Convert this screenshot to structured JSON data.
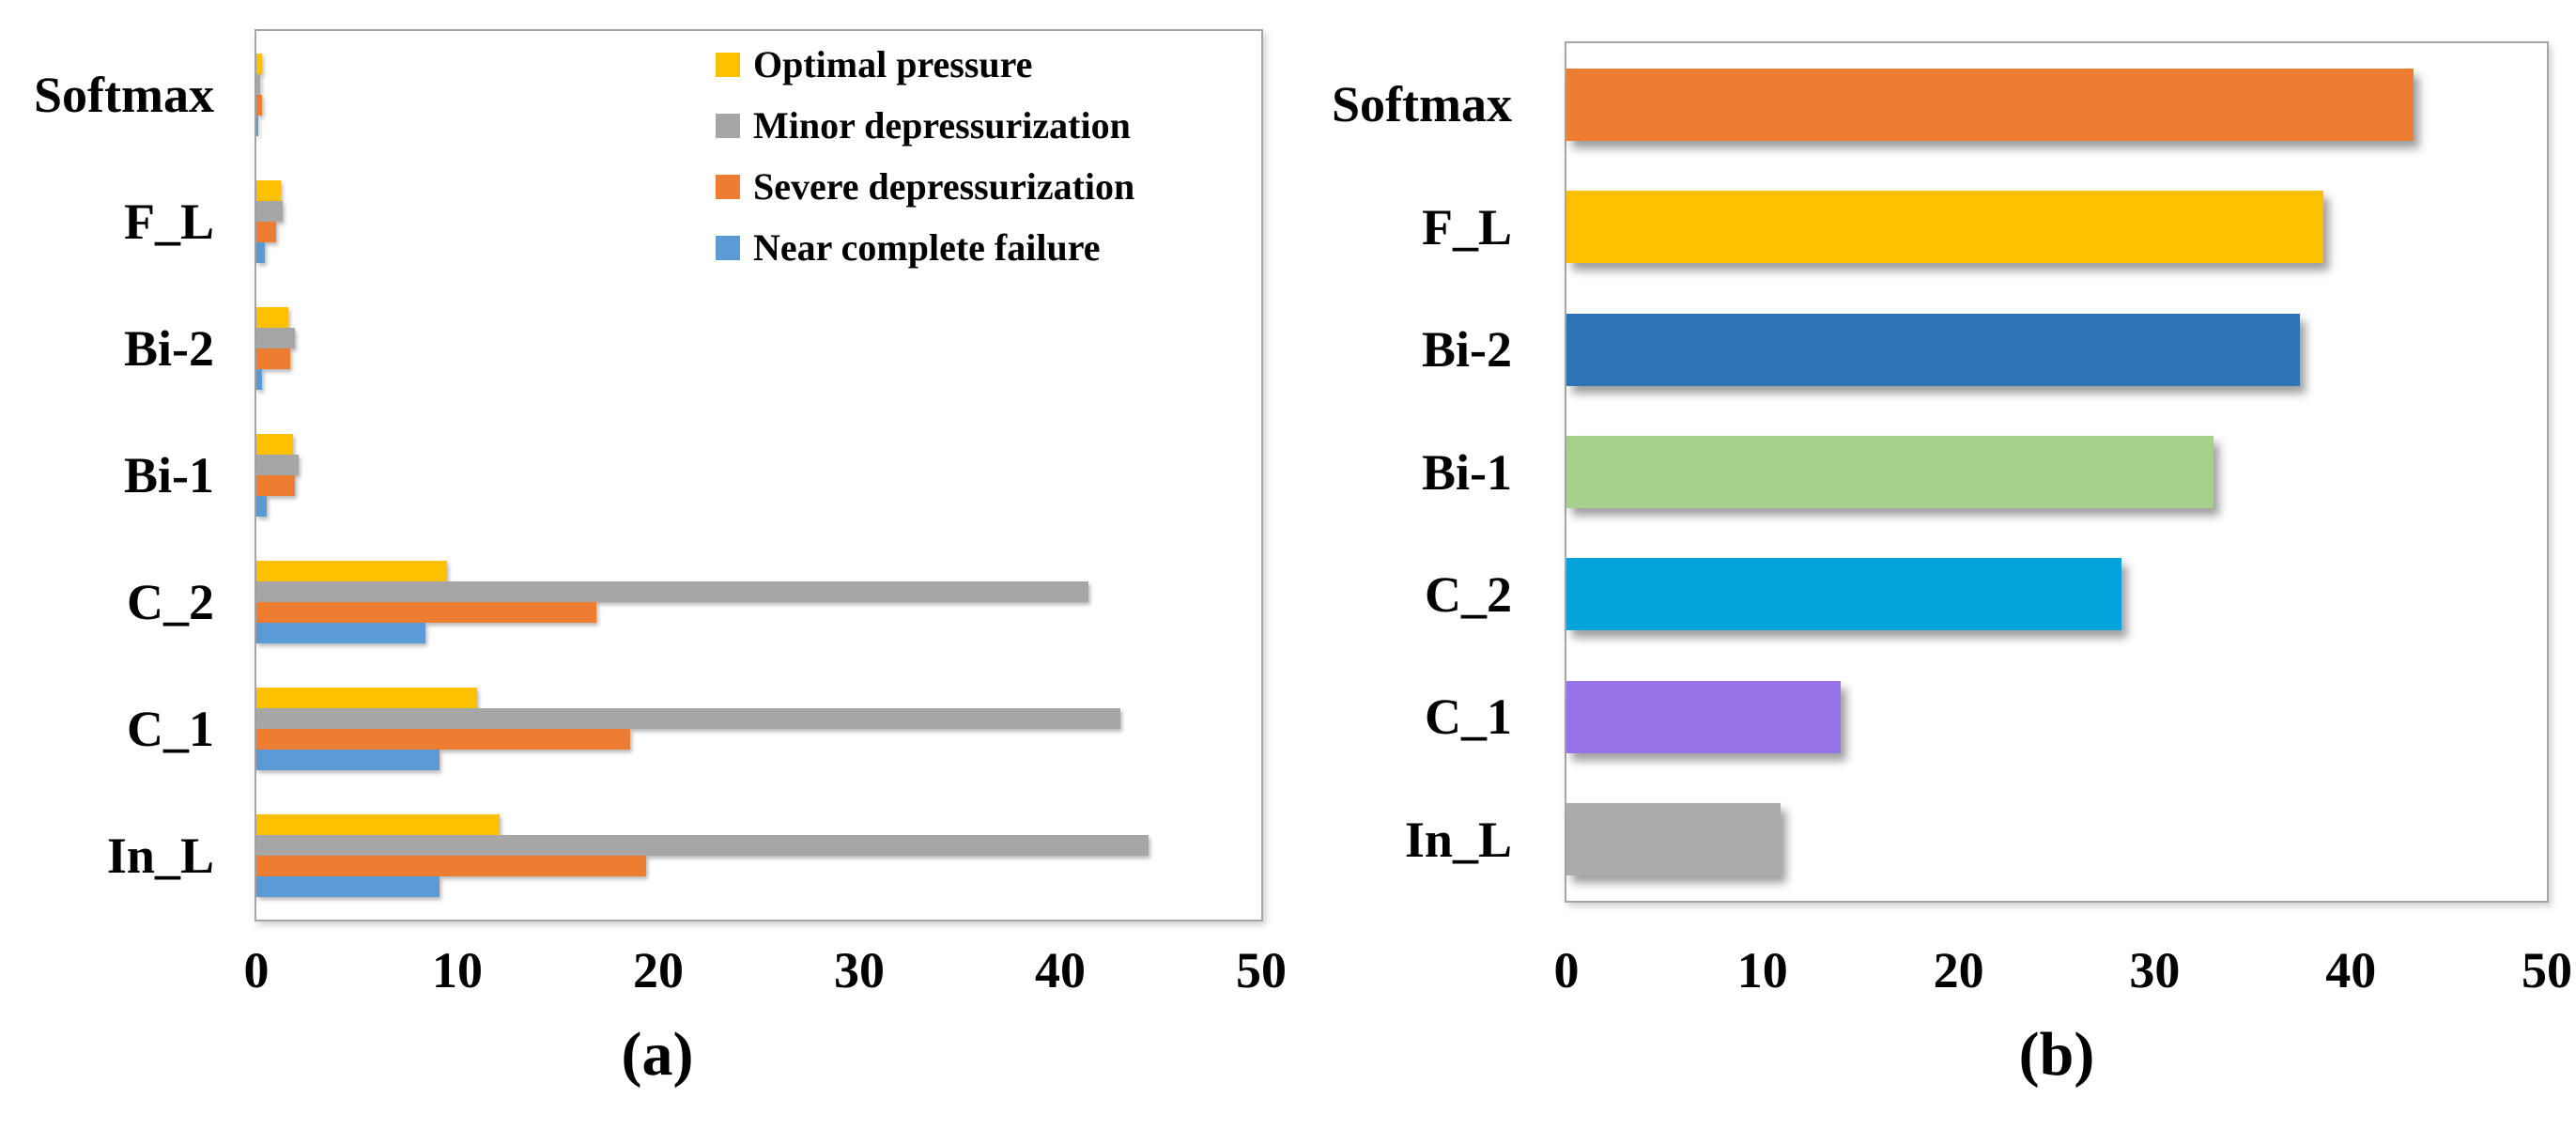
{
  "page": {
    "background": "#ffffff"
  },
  "chart_data": [
    {
      "id": "a",
      "caption": "(a)",
      "type": "bar",
      "orientation": "horizontal",
      "title": "",
      "xlabel": "",
      "ylabel": "",
      "xlim": [
        0,
        50
      ],
      "xticks": [
        0,
        10,
        20,
        30,
        40,
        50
      ],
      "grid": false,
      "legend_position": "top-right-inside",
      "categories": [
        "Softmax",
        "F_L",
        "Bi-2",
        "Bi-1",
        "C_2",
        "C_1",
        "In_L"
      ],
      "series": [
        {
          "name": "Optimal pressure",
          "color": "#FFC000",
          "values": [
            0.3,
            1.2,
            1.6,
            1.8,
            9.5,
            11.0,
            12.1
          ]
        },
        {
          "name": "Minor depressurization",
          "color": "#A6A6A6",
          "values": [
            0.2,
            1.3,
            1.9,
            2.1,
            41.4,
            43.0,
            44.4
          ]
        },
        {
          "name": "Severe depressurization",
          "color": "#ED7D31",
          "values": [
            0.3,
            1.0,
            1.7,
            1.9,
            16.9,
            18.6,
            19.4
          ]
        },
        {
          "name": "Near complete failure",
          "color": "#5B9BD5",
          "values": [
            0.1,
            0.4,
            0.3,
            0.5,
            8.4,
            9.1,
            9.1
          ]
        }
      ]
    },
    {
      "id": "b",
      "caption": "(b)",
      "type": "bar",
      "orientation": "horizontal",
      "title": "",
      "xlabel": "",
      "ylabel": "",
      "xlim": [
        0,
        50
      ],
      "xticks": [
        0,
        10,
        20,
        30,
        40,
        50
      ],
      "grid": false,
      "legend_position": "none",
      "categories": [
        "Softmax",
        "F_L",
        "Bi-2",
        "Bi-1",
        "C_2",
        "C_1",
        "In_L"
      ],
      "series": [
        {
          "name": "",
          "values": [
            43.2,
            38.6,
            37.4,
            33.0,
            28.3,
            14.0,
            10.9
          ],
          "colors": [
            "#ED7D31",
            "#FFC000",
            "#2E74B5",
            "#A8D08D",
            "#00A3DA",
            "#9673E6",
            "#ABABAB"
          ]
        }
      ]
    }
  ]
}
